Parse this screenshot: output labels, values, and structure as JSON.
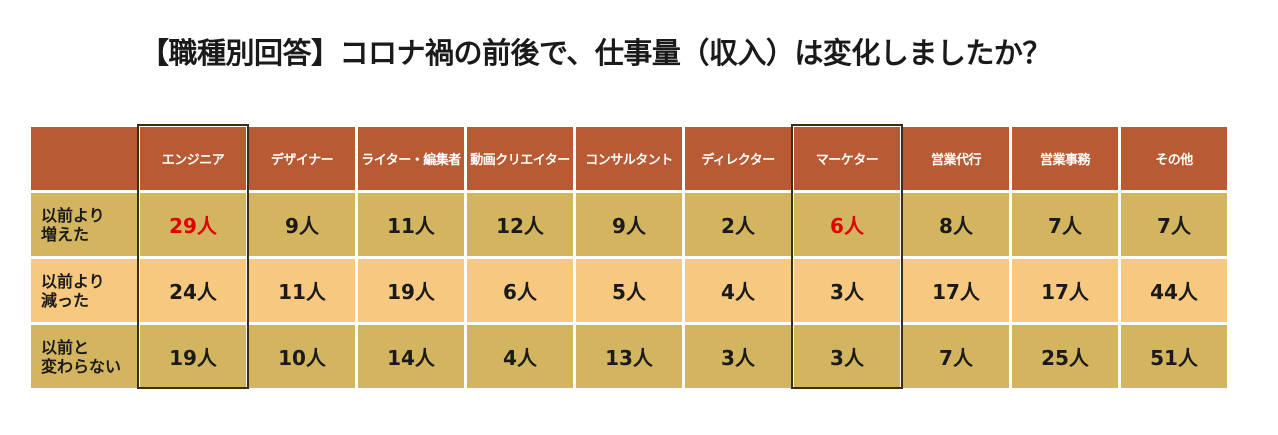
{
  "title": "【職種別回答】コロナ禍の前後で、仕事量（収入）は変化しましたか？",
  "colors": {
    "header_bg": "#b85a34",
    "row_dark": "#d3b55f",
    "row_light": "#f6c880",
    "highlight_text": "#e00000",
    "highlight_frame": "#3e2d10"
  },
  "chart_data": {
    "type": "table",
    "title": "【職種別回答】コロナ禍の前後で、仕事量（収入）は変化しましたか？",
    "columns": [
      "エンジニア",
      "デザイナー",
      "ライター・編集者",
      "動画クリエイター",
      "コンサルタント",
      "ディレクター",
      "マーケター",
      "営業代行",
      "営業事務",
      "その他"
    ],
    "rows": [
      {
        "label_line1": "以前より",
        "label_line2": "増えた",
        "values": [
          29,
          9,
          11,
          12,
          9,
          2,
          6,
          8,
          7,
          7
        ]
      },
      {
        "label_line1": "以前より",
        "label_line2": "減った",
        "values": [
          24,
          11,
          19,
          6,
          5,
          4,
          3,
          17,
          17,
          44
        ]
      },
      {
        "label_line1": "以前と",
        "label_line2": "変わらない",
        "values": [
          19,
          10,
          14,
          4,
          13,
          3,
          3,
          7,
          25,
          51
        ]
      }
    ],
    "unit": "人",
    "highlighted_columns": [
      "エンジニア",
      "マーケター"
    ],
    "red_values": [
      {
        "row": 0,
        "column": "エンジニア"
      },
      {
        "row": 0,
        "column": "マーケター"
      }
    ]
  }
}
